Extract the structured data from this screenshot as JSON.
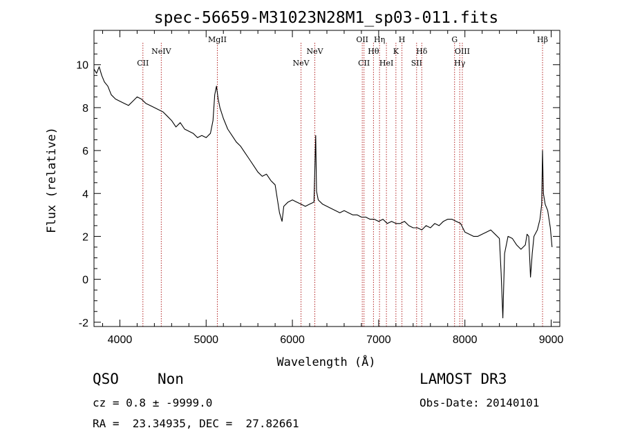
{
  "chart_data": {
    "type": "line",
    "title": "spec-56659-M31023N28M1_sp03-011.fits",
    "xlabel": "Wavelength (Å)",
    "ylabel": "Flux (relative)",
    "xlim": [
      3700,
      9100
    ],
    "ylim": [
      -2.2,
      11.6
    ],
    "xticks": [
      4000,
      5000,
      6000,
      7000,
      8000,
      9000
    ],
    "yticks": [
      -2,
      0,
      2,
      4,
      6,
      8,
      10
    ],
    "grid": false,
    "colors": {
      "spectrum": "#000000",
      "lines": "#b22222"
    },
    "spectral_lines": [
      {
        "label": "CII",
        "wavelength": 4267,
        "row": 3
      },
      {
        "label": "NeIV",
        "wavelength": 4480,
        "row": 2
      },
      {
        "label": "MgII",
        "wavelength": 5130,
        "row": 1
      },
      {
        "label": "NeV",
        "wavelength": 6100,
        "row": 3
      },
      {
        "label": "NeV",
        "wavelength": 6260,
        "row": 2
      },
      {
        "label": "OII",
        "wavelength": 6810,
        "row": 1
      },
      {
        "label": "CII",
        "wavelength": 6830,
        "row": 3
      },
      {
        "label": "Hθ",
        "wavelength": 6940,
        "row": 2
      },
      {
        "label": "Hη",
        "wavelength": 7010,
        "row": 1
      },
      {
        "label": "HeI",
        "wavelength": 7090,
        "row": 3
      },
      {
        "label": "K",
        "wavelength": 7200,
        "row": 2
      },
      {
        "label": "H",
        "wavelength": 7270,
        "row": 1
      },
      {
        "label": "SII",
        "wavelength": 7440,
        "row": 3
      },
      {
        "label": "Hδ",
        "wavelength": 7500,
        "row": 2
      },
      {
        "label": "G",
        "wavelength": 7880,
        "row": 1
      },
      {
        "label": "Hγ",
        "wavelength": 7940,
        "row": 3
      },
      {
        "label": "OIII",
        "wavelength": 7970,
        "row": 2
      },
      {
        "label": "Hβ",
        "wavelength": 8900,
        "row": 1
      }
    ],
    "series": [
      {
        "wavelength": [
          3700,
          3730,
          3760,
          3790,
          3820,
          3860,
          3900,
          3950,
          4000,
          4050,
          4100,
          4150,
          4200,
          4250,
          4300,
          4350,
          4400,
          4450,
          4500,
          4550,
          4600,
          4650,
          4700,
          4750,
          4800,
          4850,
          4900,
          4950,
          5000,
          5050,
          5080,
          5100,
          5120,
          5140,
          5160,
          5200,
          5250,
          5300,
          5350,
          5400,
          5450,
          5500,
          5550,
          5600,
          5650,
          5700,
          5750,
          5800,
          5850,
          5880,
          5900,
          5950,
          6000,
          6050,
          6100,
          6150,
          6200,
          6250,
          6270,
          6280,
          6300,
          6350,
          6400,
          6450,
          6500,
          6550,
          6600,
          6650,
          6700,
          6750,
          6800,
          6850,
          6900,
          6950,
          7000,
          7050,
          7100,
          7150,
          7200,
          7250,
          7300,
          7350,
          7400,
          7450,
          7500,
          7550,
          7600,
          7650,
          7700,
          7750,
          7800,
          7850,
          7900,
          7950,
          8000,
          8050,
          8100,
          8150,
          8200,
          8250,
          8300,
          8350,
          8400,
          8420,
          8440,
          8460,
          8500,
          8550,
          8600,
          8650,
          8700,
          8720,
          8740,
          8760,
          8780,
          8800,
          8840,
          8870,
          8890,
          8900,
          8910,
          8930,
          8960,
          8990,
          9010
        ],
        "flux": [
          9.8,
          9.6,
          9.9,
          9.5,
          9.2,
          9.0,
          8.6,
          8.4,
          8.3,
          8.2,
          8.1,
          8.3,
          8.5,
          8.4,
          8.2,
          8.1,
          8.0,
          7.9,
          7.8,
          7.6,
          7.4,
          7.1,
          7.3,
          7.0,
          6.9,
          6.8,
          6.6,
          6.7,
          6.6,
          6.8,
          7.4,
          8.6,
          9.0,
          8.4,
          8.0,
          7.5,
          7.0,
          6.7,
          6.4,
          6.2,
          5.9,
          5.6,
          5.3,
          5.0,
          4.8,
          4.9,
          4.6,
          4.4,
          3.1,
          2.7,
          3.4,
          3.6,
          3.7,
          3.6,
          3.5,
          3.4,
          3.5,
          3.6,
          6.7,
          4.1,
          3.7,
          3.5,
          3.4,
          3.3,
          3.2,
          3.1,
          3.2,
          3.1,
          3.0,
          3.0,
          2.9,
          2.9,
          2.8,
          2.8,
          2.7,
          2.8,
          2.6,
          2.7,
          2.6,
          2.6,
          2.7,
          2.5,
          2.4,
          2.4,
          2.3,
          2.5,
          2.4,
          2.6,
          2.5,
          2.7,
          2.8,
          2.8,
          2.7,
          2.6,
          2.2,
          2.1,
          2.0,
          2.0,
          2.1,
          2.2,
          2.3,
          2.1,
          1.9,
          0.3,
          -1.8,
          1.2,
          2.0,
          1.9,
          1.6,
          1.4,
          1.6,
          2.1,
          2.0,
          0.1,
          1.2,
          2.0,
          2.3,
          2.8,
          3.5,
          6.0,
          4.0,
          3.5,
          3.2,
          2.4,
          1.5
        ]
      }
    ]
  },
  "info": {
    "class": "QSO",
    "subclass": "Non",
    "cz": "cz = 0.8 ± -9999.0",
    "coords": "RA =  23.34935, DEC =  27.82661",
    "survey": "LAMOST DR3",
    "obs_date": "Obs-Date: 20140101"
  }
}
